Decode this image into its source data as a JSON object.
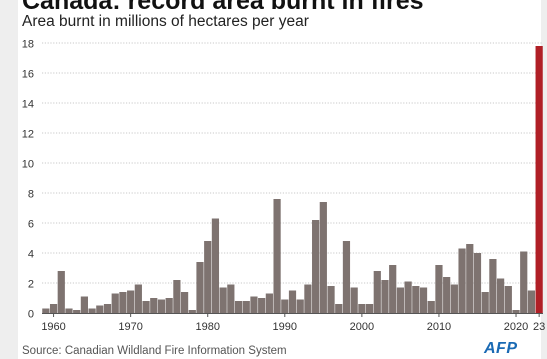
{
  "title": "Canada: record area burnt in fires",
  "subtitle": "Area burnt in millions of hectares per year",
  "source": "Source: Canadian Wildland Fire Information System",
  "logo": "AFP",
  "colors": {
    "bar": "#7e7370",
    "highlight": "#b01f26",
    "grid": "#b7b7b7",
    "text": "#333333"
  },
  "chart_data": {
    "type": "bar",
    "ylim": [
      0,
      18
    ],
    "yticks": [
      0,
      2,
      4,
      6,
      8,
      10,
      12,
      14,
      16,
      18
    ],
    "xtick_labels": [
      "1960",
      "1970",
      "1980",
      "1990",
      "2000",
      "2010",
      "2020",
      "23"
    ],
    "xtick_years": [
      1960,
      1970,
      1980,
      1990,
      2000,
      2010,
      2020,
      2023
    ],
    "grid": true,
    "highlight_year": 2023,
    "years": [
      1959,
      1960,
      1961,
      1962,
      1963,
      1964,
      1965,
      1966,
      1967,
      1968,
      1969,
      1970,
      1971,
      1972,
      1973,
      1974,
      1975,
      1976,
      1977,
      1978,
      1979,
      1980,
      1981,
      1982,
      1983,
      1984,
      1985,
      1986,
      1987,
      1988,
      1989,
      1990,
      1991,
      1992,
      1993,
      1994,
      1995,
      1996,
      1997,
      1998,
      1999,
      2000,
      2001,
      2002,
      2003,
      2004,
      2005,
      2006,
      2007,
      2008,
      2009,
      2010,
      2011,
      2012,
      2013,
      2014,
      2015,
      2016,
      2017,
      2018,
      2019,
      2020,
      2021,
      2022,
      2023
    ],
    "values": [
      0.3,
      0.6,
      2.8,
      0.3,
      0.2,
      1.1,
      0.3,
      0.5,
      0.6,
      1.3,
      1.4,
      1.5,
      1.9,
      0.8,
      1.0,
      0.9,
      1.0,
      2.2,
      1.4,
      0.2,
      3.4,
      4.8,
      6.3,
      1.7,
      1.9,
      0.8,
      0.8,
      1.1,
      1.0,
      1.3,
      7.6,
      0.9,
      1.5,
      0.9,
      1.9,
      6.2,
      7.4,
      1.8,
      0.6,
      4.8,
      1.7,
      0.6,
      0.6,
      2.8,
      2.2,
      3.2,
      1.7,
      2.1,
      1.8,
      1.7,
      0.8,
      3.2,
      2.4,
      1.9,
      4.3,
      4.6,
      4.0,
      1.4,
      3.6,
      2.3,
      1.8,
      0.2,
      4.1,
      1.5,
      17.8
    ]
  }
}
